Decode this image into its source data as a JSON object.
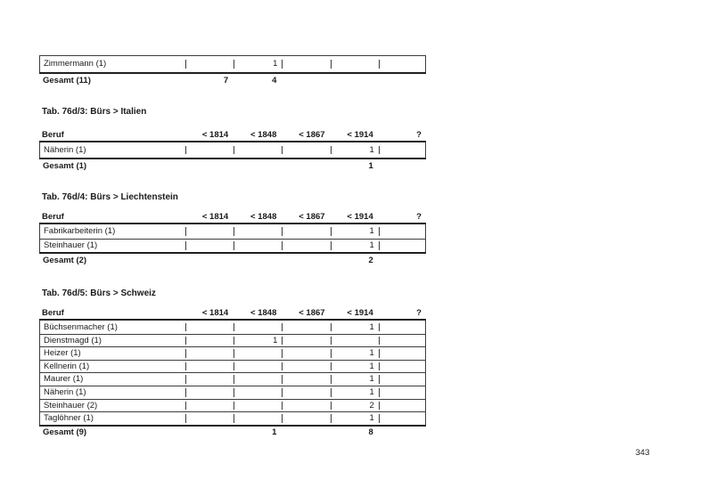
{
  "page": {
    "number": "343"
  },
  "columns": [
    "Beruf",
    "< 1814",
    "< 1848",
    "< 1867",
    "< 1914",
    "?"
  ],
  "tables": [
    {
      "heading": "",
      "header_visible": false,
      "rows": [
        {
          "beruf": "Zimmermann (1)",
          "values": [
            "",
            "1",
            "",
            "",
            ""
          ]
        }
      ],
      "total": {
        "beruf": "Gesamt (11)",
        "values": [
          "7",
          "4",
          "",
          "",
          ""
        ]
      }
    },
    {
      "heading": "Tab. 76d/3: Bürs > Italien",
      "header_visible": true,
      "rows": [
        {
          "beruf": "Näherin (1)",
          "values": [
            "",
            "",
            "",
            "1",
            ""
          ]
        }
      ],
      "total": {
        "beruf": "Gesamt (1)",
        "values": [
          "",
          "",
          "",
          "1",
          ""
        ]
      }
    },
    {
      "heading": "Tab. 76d/4: Bürs > Liechtenstein",
      "header_visible": true,
      "rows": [
        {
          "beruf": "Fabrikarbeiterin (1)",
          "values": [
            "",
            "",
            "",
            "1",
            ""
          ]
        },
        {
          "beruf": "Steinhauer (1)",
          "values": [
            "",
            "",
            "",
            "1",
            ""
          ]
        }
      ],
      "total": {
        "beruf": "Gesamt (2)",
        "values": [
          "",
          "",
          "",
          "2",
          ""
        ]
      }
    },
    {
      "heading": "Tab. 76d/5: Bürs > Schweiz",
      "header_visible": true,
      "rows": [
        {
          "beruf": "Büchsenmacher (1)",
          "values": [
            "",
            "",
            "",
            "1",
            ""
          ]
        },
        {
          "beruf": "Dienstmagd (1)",
          "values": [
            "",
            "1",
            "",
            "",
            ""
          ]
        },
        {
          "beruf": "Heizer (1)",
          "values": [
            "",
            "",
            "",
            "1",
            ""
          ]
        },
        {
          "beruf": "Kellnerin (1)",
          "values": [
            "",
            "",
            "",
            "1",
            ""
          ]
        },
        {
          "beruf": "Maurer (1)",
          "values": [
            "",
            "",
            "",
            "1",
            ""
          ]
        },
        {
          "beruf": "Näherin (1)",
          "values": [
            "",
            "",
            "",
            "1",
            ""
          ]
        },
        {
          "beruf": "Steinhauer (2)",
          "values": [
            "",
            "",
            "",
            "2",
            ""
          ]
        },
        {
          "beruf": "Taglöhner (1)",
          "values": [
            "",
            "",
            "",
            "1",
            ""
          ]
        }
      ],
      "total": {
        "beruf": "Gesamt (9)",
        "values": [
          "",
          "1",
          "",
          "8",
          ""
        ]
      }
    }
  ]
}
